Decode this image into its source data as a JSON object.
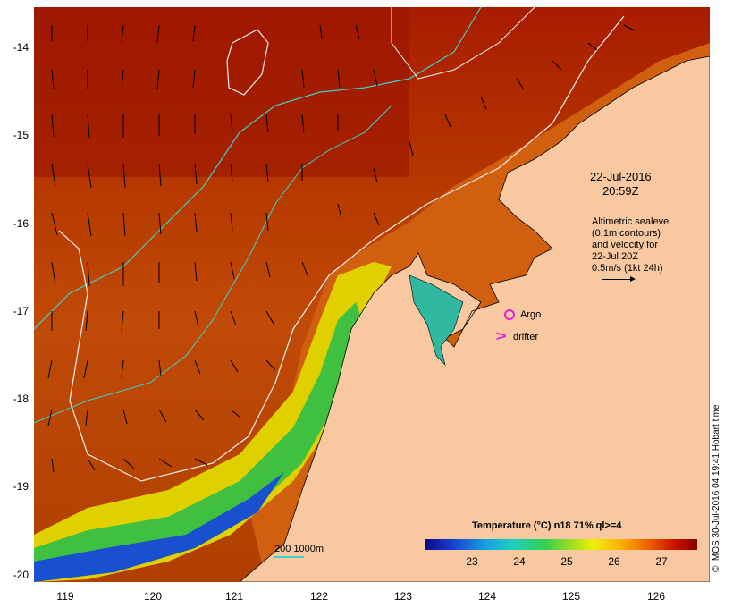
{
  "map": {
    "timestamp_line1": "22-Jul-2016",
    "timestamp_line2": "20:59Z",
    "altimetry_lines": [
      "Altimetric sealevel",
      "(0.1m contours)",
      "and velocity for",
      "22-Jul 20Z",
      "0.5m/s (1kt 24h)"
    ],
    "legend": {
      "argo_label": "Argo",
      "drifter_label": "drifter",
      "scale_label": "200  1000m",
      "drifter_symbol": ">",
      "colors": {
        "argo": "#e020e0",
        "isobath": "#40d0c8",
        "land": "#f8c8a0"
      }
    },
    "colorbar": {
      "title": "Temperature (°C) n18 71% ql>=4",
      "ticks": [
        "23",
        "24",
        "25",
        "26",
        "27"
      ]
    },
    "y_axis_labels": [
      "-14",
      "-15",
      "-16",
      "-17",
      "-18",
      "-19",
      "-20"
    ],
    "x_axis_labels": [
      "119",
      "120",
      "121",
      "122",
      "123",
      "124",
      "125",
      "126"
    ],
    "credit": "© IMOS 30-Jul-2016 04:19:41 Hobart time"
  }
}
